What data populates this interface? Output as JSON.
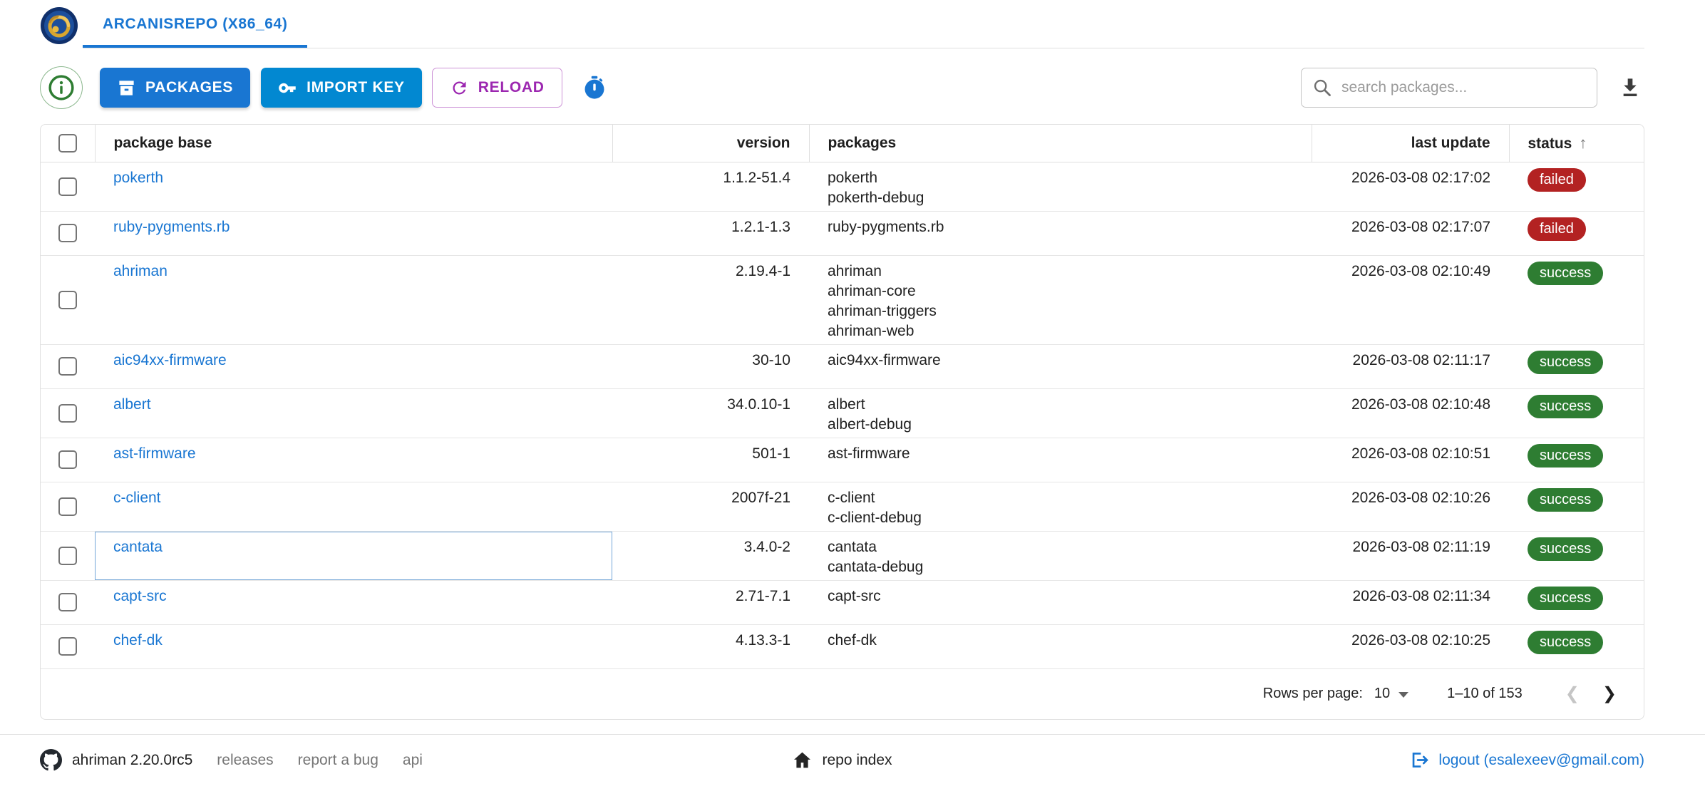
{
  "header": {
    "tab_label": "ARCANISREPO (X86_64)"
  },
  "toolbar": {
    "packages_label": "PACKAGES",
    "import_key_label": "IMPORT KEY",
    "reload_label": "RELOAD",
    "search_placeholder": "search packages..."
  },
  "table": {
    "columns": [
      "package base",
      "version",
      "packages",
      "last update",
      "status"
    ],
    "sorted_by": "status",
    "sort_direction": "asc",
    "rows": [
      {
        "base": "pokerth",
        "version": "1.1.2-51.4",
        "packages": [
          "pokerth",
          "pokerth-debug"
        ],
        "last_update": "2026-03-08 02:17:02",
        "status": "failed"
      },
      {
        "base": "ruby-pygments.rb",
        "version": "1.2.1-1.3",
        "packages": [
          "ruby-pygments.rb"
        ],
        "last_update": "2026-03-08 02:17:07",
        "status": "failed"
      },
      {
        "base": "ahriman",
        "version": "2.19.4-1",
        "packages": [
          "ahriman",
          "ahriman-core",
          "ahriman-triggers",
          "ahriman-web"
        ],
        "last_update": "2026-03-08 02:10:49",
        "status": "success"
      },
      {
        "base": "aic94xx-firmware",
        "version": "30-10",
        "packages": [
          "aic94xx-firmware"
        ],
        "last_update": "2026-03-08 02:11:17",
        "status": "success"
      },
      {
        "base": "albert",
        "version": "34.0.10-1",
        "packages": [
          "albert",
          "albert-debug"
        ],
        "last_update": "2026-03-08 02:10:48",
        "status": "success"
      },
      {
        "base": "ast-firmware",
        "version": "501-1",
        "packages": [
          "ast-firmware"
        ],
        "last_update": "2026-03-08 02:10:51",
        "status": "success"
      },
      {
        "base": "c-client",
        "version": "2007f-21",
        "packages": [
          "c-client",
          "c-client-debug"
        ],
        "last_update": "2026-03-08 02:10:26",
        "status": "success"
      },
      {
        "base": "cantata",
        "version": "3.4.0-2",
        "packages": [
          "cantata",
          "cantata-debug"
        ],
        "last_update": "2026-03-08 02:11:19",
        "status": "success",
        "focused": true
      },
      {
        "base": "capt-src",
        "version": "2.71-7.1",
        "packages": [
          "capt-src"
        ],
        "last_update": "2026-03-08 02:11:34",
        "status": "success"
      },
      {
        "base": "chef-dk",
        "version": "4.13.3-1",
        "packages": [
          "chef-dk"
        ],
        "last_update": "2026-03-08 02:10:25",
        "status": "success"
      }
    ]
  },
  "pagination": {
    "rows_per_page_label": "Rows per page:",
    "rows_per_page": "10",
    "range": "1–10 of 153"
  },
  "footer": {
    "version": "ahriman 2.20.0rc5",
    "links": [
      "releases",
      "report a bug",
      "api"
    ],
    "repo_index_label": "repo index",
    "logout_label": "logout (esalexeev@gmail.com)"
  },
  "icons": {
    "sort_asc": "↑",
    "chevron_left": "❮",
    "chevron_right": "❯"
  },
  "colors": {
    "primary_blue": "#1976d2",
    "import_key_blue": "#0288d1",
    "reload_purple": "#9c27b0",
    "info_green": "#2e7d32",
    "status_success": "#2e7d32",
    "status_failed": "#b32222"
  }
}
